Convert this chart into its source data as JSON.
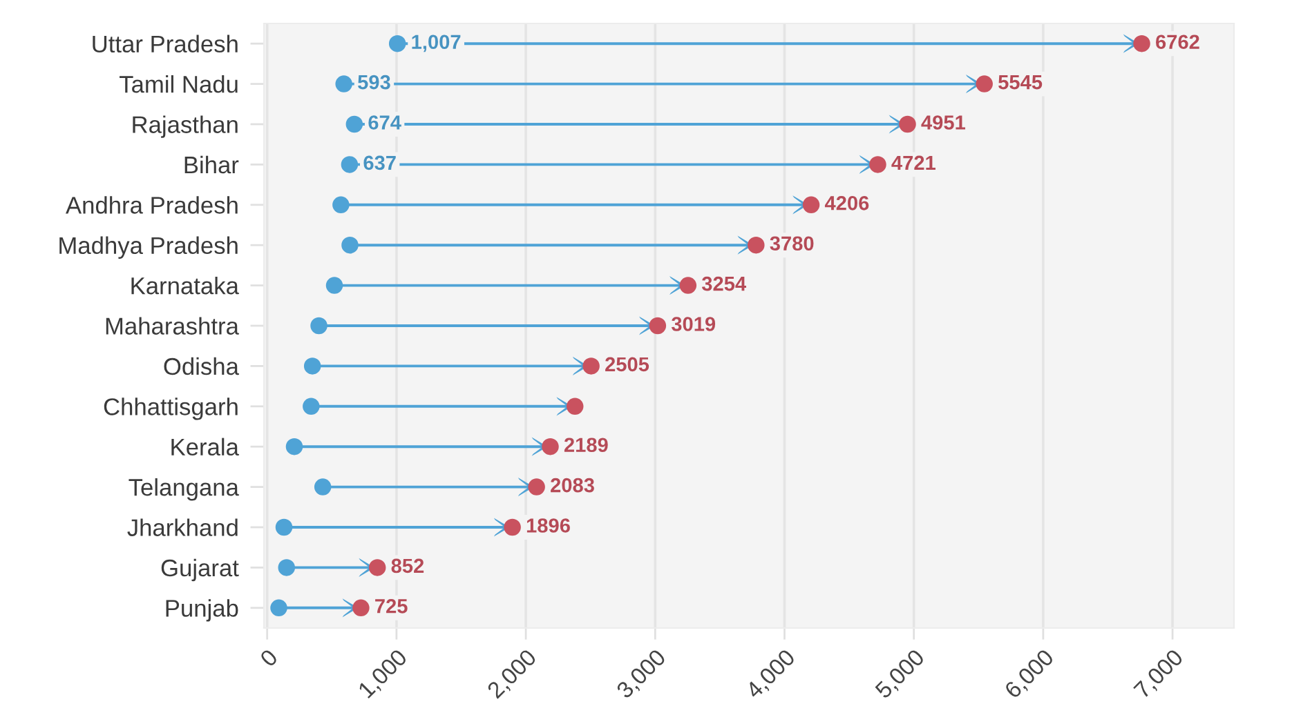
{
  "chart_data": {
    "type": "scatter",
    "orientation": "horizontal",
    "marker": "circle",
    "grid": "x",
    "categories": [
      "Uttar Pradesh",
      "Tamil Nadu",
      "Rajasthan",
      "Bihar",
      "Andhra Pradesh",
      "Madhya Pradesh",
      "Karnataka",
      "Maharashtra",
      "Odisha",
      "Chhattisgarh",
      "Kerala",
      "Telangana",
      "Jharkhand",
      "Gujarat",
      "Punjab"
    ],
    "series": [
      {
        "color": "#4fa3d6",
        "values": [
          1007,
          593,
          674,
          637,
          570,
          640,
          520,
          400,
          350,
          340,
          210,
          430,
          130,
          150,
          90
        ],
        "value_labels": [
          "1,007",
          "593",
          "674",
          "637",
          null,
          null,
          null,
          null,
          null,
          null,
          null,
          null,
          null,
          null,
          null
        ]
      },
      {
        "color": "#c9525f",
        "values": [
          6762,
          5545,
          4951,
          4721,
          4206,
          3780,
          3254,
          3019,
          2505,
          2380,
          2189,
          2083,
          1896,
          852,
          725
        ],
        "value_labels": [
          "6762",
          "5545",
          "4951",
          "4721",
          "4206",
          "3780",
          "3254",
          "3019",
          "2505",
          null,
          "2189",
          "2083",
          "1896",
          "852",
          "725"
        ]
      }
    ],
    "xlim": [
      -25,
      7475
    ],
    "xticks": [
      0,
      {
        "value": 1000,
        "label": "1,000"
      },
      {
        "value": 2000,
        "label": "2,000"
      },
      {
        "value": 3000,
        "label": "3,000"
      },
      {
        "value": 4000,
        "label": "4,000"
      },
      {
        "value": 5000,
        "label": "5,000"
      },
      {
        "value": 6000,
        "label": "6,000"
      },
      {
        "value": 7000,
        "label": "7,000"
      }
    ]
  }
}
